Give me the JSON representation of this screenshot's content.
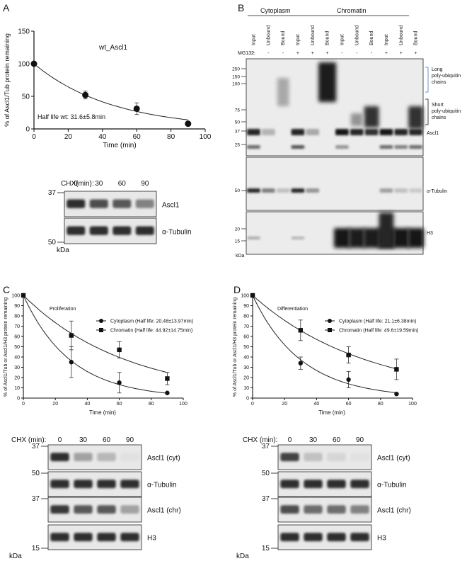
{
  "panels": [
    {
      "letter": "A",
      "chart_data": {
        "type": "scatter",
        "title": "wt_Ascl1",
        "xlabel": "Time (min)",
        "ylabel": "% of Ascl1/Tub protein remaining",
        "xlim": [
          0,
          100
        ],
        "ylim": [
          0,
          150
        ],
        "xticks": [
          0,
          20,
          40,
          60,
          80,
          100
        ],
        "yticks": [
          0,
          50,
          100,
          150
        ],
        "annotation": "Half life wt: 31.6±5.8min",
        "series": [
          {
            "x": [
              0,
              30,
              60,
              90
            ],
            "y": [
              100,
              52,
              31,
              8
            ],
            "err": [
              0,
              6,
              9,
              0
            ],
            "marker": "circle",
            "half_life": 31.6
          }
        ]
      },
      "blot": {
        "cond_label": "CHX(min):",
        "conditions": [
          "0",
          "30",
          "60",
          "90"
        ],
        "kda_label": "kDa",
        "rows": [
          {
            "label": "Ascl1",
            "marker": "37",
            "intensity": [
              0.9,
              0.75,
              0.7,
              0.5
            ]
          },
          {
            "label": "α-Tubulin",
            "marker": "50",
            "intensity": [
              0.9,
              0.9,
              0.9,
              0.9
            ]
          }
        ]
      }
    },
    {
      "letter": "B",
      "groups": [
        "Cytoplasm",
        "Chromatin"
      ],
      "lanes": [
        "Input",
        "Unbound",
        "Bound",
        "Input",
        "Unbound",
        "Bound",
        "Input",
        "Unbound",
        "Bound",
        "Input",
        "Unbound",
        "Bound"
      ],
      "mg132_label": "MG132:",
      "mg132": [
        "-",
        "-",
        "-",
        "+",
        "+",
        "+",
        "-",
        "-",
        "-",
        "+",
        "+",
        "+"
      ],
      "markers_top": [
        "250",
        "150",
        "100",
        "75",
        "50",
        "37",
        "25"
      ],
      "marker_tub": "50",
      "markers_h3": [
        "20",
        "15"
      ],
      "kda_label": "kDa",
      "labels": {
        "long": [
          "Long",
          "poly-ubiquitin",
          "chains"
        ],
        "short": [
          "Short",
          "poly-ubiquitin",
          "chains"
        ],
        "ascl1": "Ascl1",
        "tub": "α-Tubulin",
        "h3": "H3"
      },
      "colors": {
        "long_label": "#3a78c9"
      }
    },
    {
      "letter": "C",
      "chart_data": {
        "type": "scatter",
        "title": "Proliferation",
        "xlabel": "Time (min)",
        "ylabel": "% of Ascl1/Tub or Ascl1/H3 protein remaining",
        "xlim": [
          0,
          100
        ],
        "ylim": [
          0,
          100
        ],
        "xticks": [
          0,
          20,
          40,
          60,
          80,
          100
        ],
        "yticks": [
          0,
          10,
          20,
          30,
          40,
          50,
          60,
          70,
          80,
          90,
          100
        ],
        "series": [
          {
            "name": "Cytoplasm (Half life: 20.48±13.97min)",
            "marker": "circle",
            "half_life": 20.48,
            "x": [
              0,
              30,
              60,
              90
            ],
            "y": [
              100,
              35,
              15,
              5
            ],
            "err": [
              0,
              15,
              10,
              0
            ]
          },
          {
            "name": "Chromatin (Half life: 44.92±14.75min)",
            "marker": "square",
            "half_life": 44.92,
            "x": [
              0,
              30,
              60,
              90
            ],
            "y": [
              100,
              61,
              47,
              19
            ],
            "err": [
              0,
              14,
              8,
              6
            ]
          }
        ]
      },
      "blot": {
        "cond_label": "CHX (min):",
        "conditions": [
          "0",
          "30",
          "60",
          "90"
        ],
        "kda_label": "kDa",
        "rows": [
          {
            "label": "Ascl1 (cyt)",
            "marker": "37",
            "intensity": [
              0.9,
              0.35,
              0.25,
              0.05
            ]
          },
          {
            "label": "α-Tubulin",
            "marker": "50",
            "intensity": [
              0.9,
              0.9,
              0.9,
              0.9
            ]
          },
          {
            "label": "Ascl1 (chr)",
            "marker": "37",
            "intensity": [
              0.85,
              0.7,
              0.7,
              0.35
            ]
          },
          {
            "label": "H3",
            "marker": "15",
            "intensity": [
              0.9,
              0.9,
              0.9,
              0.9
            ]
          }
        ]
      }
    },
    {
      "letter": "D",
      "chart_data": {
        "type": "scatter",
        "title": "Differentiation",
        "xlabel": "Time (min)",
        "ylabel": "% of Ascl1/Tub or Ascl1/H3 protein remaining",
        "xlim": [
          0,
          100
        ],
        "ylim": [
          0,
          100
        ],
        "xticks": [
          0,
          20,
          40,
          60,
          80,
          100
        ],
        "yticks": [
          0,
          10,
          20,
          30,
          40,
          50,
          60,
          70,
          80,
          90,
          100
        ],
        "series": [
          {
            "name": "Cytoplasm (Half life: 21.1±6.38min)",
            "marker": "circle",
            "half_life": 21.1,
            "x": [
              0,
              30,
              60,
              90
            ],
            "y": [
              100,
              34,
              18,
              4
            ],
            "err": [
              0,
              6,
              8,
              0
            ]
          },
          {
            "name": "Chromatin (Half life: 49.6±19.59min)",
            "marker": "square",
            "half_life": 49.6,
            "x": [
              0,
              30,
              60,
              90
            ],
            "y": [
              100,
              66,
              42,
              28
            ],
            "err": [
              0,
              10,
              8,
              10
            ]
          }
        ]
      },
      "blot": {
        "cond_label": "CHX (min):",
        "conditions": [
          "0",
          "30",
          "60",
          "90"
        ],
        "kda_label": "kDa",
        "rows": [
          {
            "label": "Ascl1 (cyt)",
            "marker": "37",
            "intensity": [
              0.8,
              0.2,
              0.1,
              0.05
            ]
          },
          {
            "label": "α-Tubulin",
            "marker": "50",
            "intensity": [
              0.9,
              0.9,
              0.9,
              0.9
            ]
          },
          {
            "label": "Ascl1 (chr)",
            "marker": "37",
            "intensity": [
              0.75,
              0.6,
              0.6,
              0.5
            ]
          },
          {
            "label": "H3",
            "marker": "15",
            "intensity": [
              0.9,
              0.9,
              0.9,
              0.9
            ]
          }
        ]
      }
    }
  ]
}
